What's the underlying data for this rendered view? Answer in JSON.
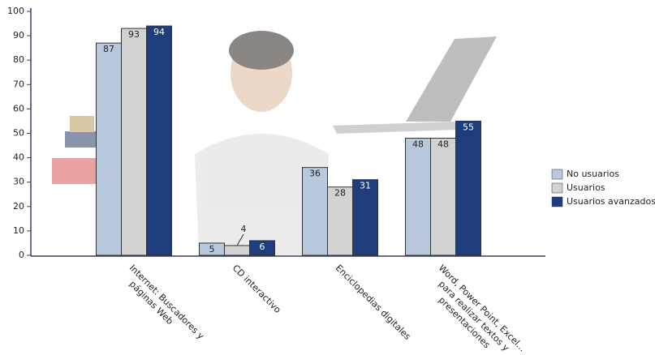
{
  "chart_data": {
    "type": "bar",
    "categories": [
      [
        "Internet: Buscadores y",
        "páginas Web"
      ],
      [
        "CD interactivo"
      ],
      [
        "Enciclopedias digitales"
      ],
      [
        "Word, Power Point, Excel...",
        "para realizar textos y",
        "presentaciones"
      ]
    ],
    "series": [
      {
        "name": "No usuarios",
        "color": "#b9c9dd",
        "values": [
          87,
          5,
          36,
          48
        ]
      },
      {
        "name": "Usuarios",
        "color": "#d2d2d2",
        "values": [
          93,
          4,
          28,
          48
        ]
      },
      {
        "name": "Usuarios avanzados",
        "color": "#1f3d7c",
        "values": [
          94,
          6,
          31,
          55
        ]
      }
    ],
    "ylim": [
      0,
      100
    ],
    "yticks": [
      0,
      10,
      20,
      30,
      40,
      50,
      60,
      70,
      80,
      90,
      100
    ],
    "grid": false,
    "legend": "right"
  }
}
